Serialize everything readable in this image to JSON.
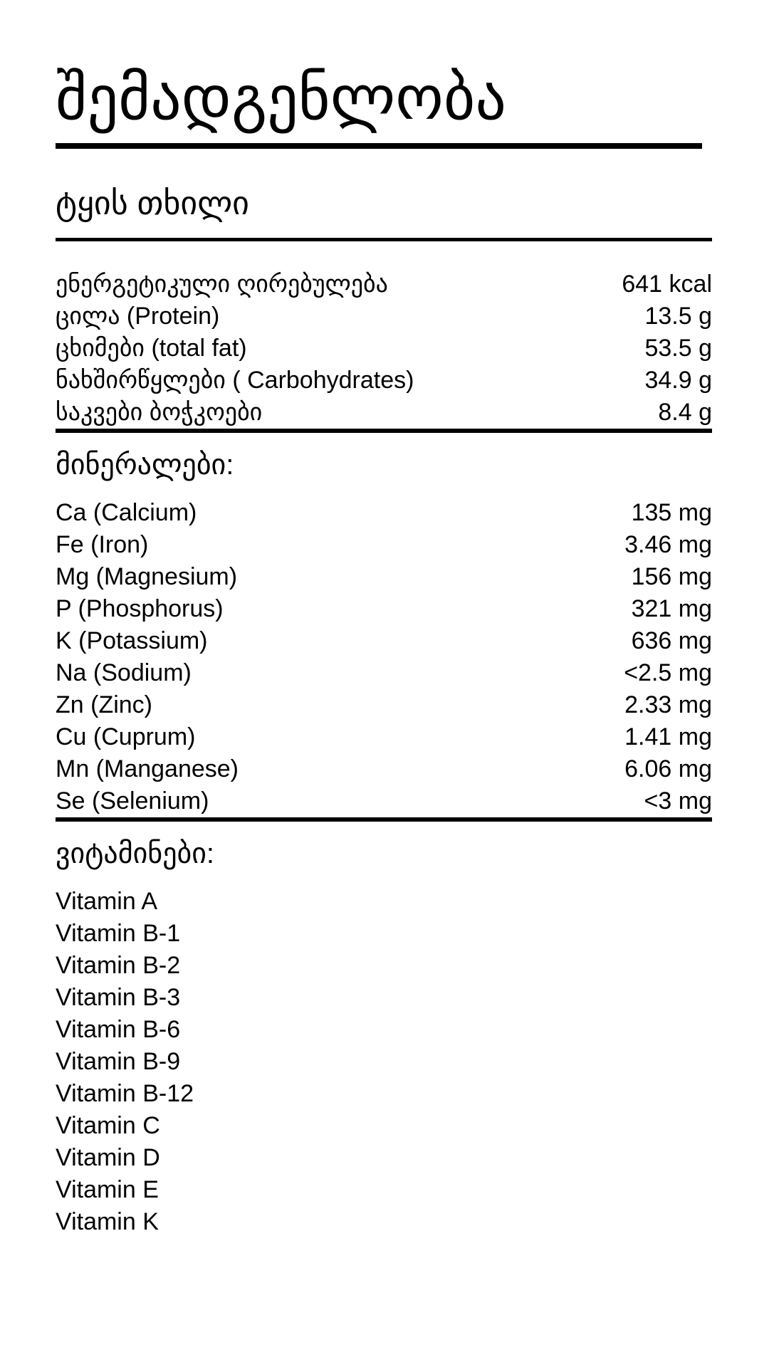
{
  "colors": {
    "background": "#ffffff",
    "text": "#000000",
    "rules": "#000000"
  },
  "header": {
    "title": "შემადგენლობა",
    "product": "ტყის თხილი"
  },
  "nutrition": {
    "rows": [
      {
        "label": "ენერგეტიკული ღირებულება",
        "value": "641 kcal"
      },
      {
        "label": "ცილა (Protein)",
        "value": "13.5 g"
      },
      {
        "label": "ცხიმები (total fat)",
        "value": "53.5 g"
      },
      {
        "label": "ნახშირწყლები ( Carbohydrates)",
        "value": "34.9 g"
      },
      {
        "label": "საკვები ბოჭკოები",
        "value": "8.4 g"
      }
    ]
  },
  "minerals": {
    "heading": "მინერალები:",
    "rows": [
      {
        "label": "Ca (Calcium)",
        "value": "135 mg"
      },
      {
        "label": "Fe (Iron)",
        "value": "3.46 mg"
      },
      {
        "label": "Mg (Magnesium)",
        "value": "156 mg"
      },
      {
        "label": "P (Phosphorus)",
        "value": "321 mg"
      },
      {
        "label": "K (Potassium)",
        "value": "636 mg"
      },
      {
        "label": "Na (Sodium)",
        "value": "<2.5 mg"
      },
      {
        "label": "Zn (Zinc)",
        "value": "2.33 mg"
      },
      {
        "label": "Cu (Cuprum)",
        "value": "1.41 mg"
      },
      {
        "label": "Mn (Manganese)",
        "value": "6.06 mg"
      },
      {
        "label": "Se (Selenium)",
        "value": "<3 mg"
      }
    ]
  },
  "vitamins": {
    "heading": "ვიტამინები:",
    "items": [
      "Vitamin A",
      "Vitamin B-1",
      "Vitamin B-2",
      "Vitamin B-3",
      "Vitamin B-6",
      "Vitamin B-9",
      "Vitamin B-12",
      "Vitamin C",
      "Vitamin D",
      "Vitamin E",
      "Vitamin K"
    ]
  }
}
